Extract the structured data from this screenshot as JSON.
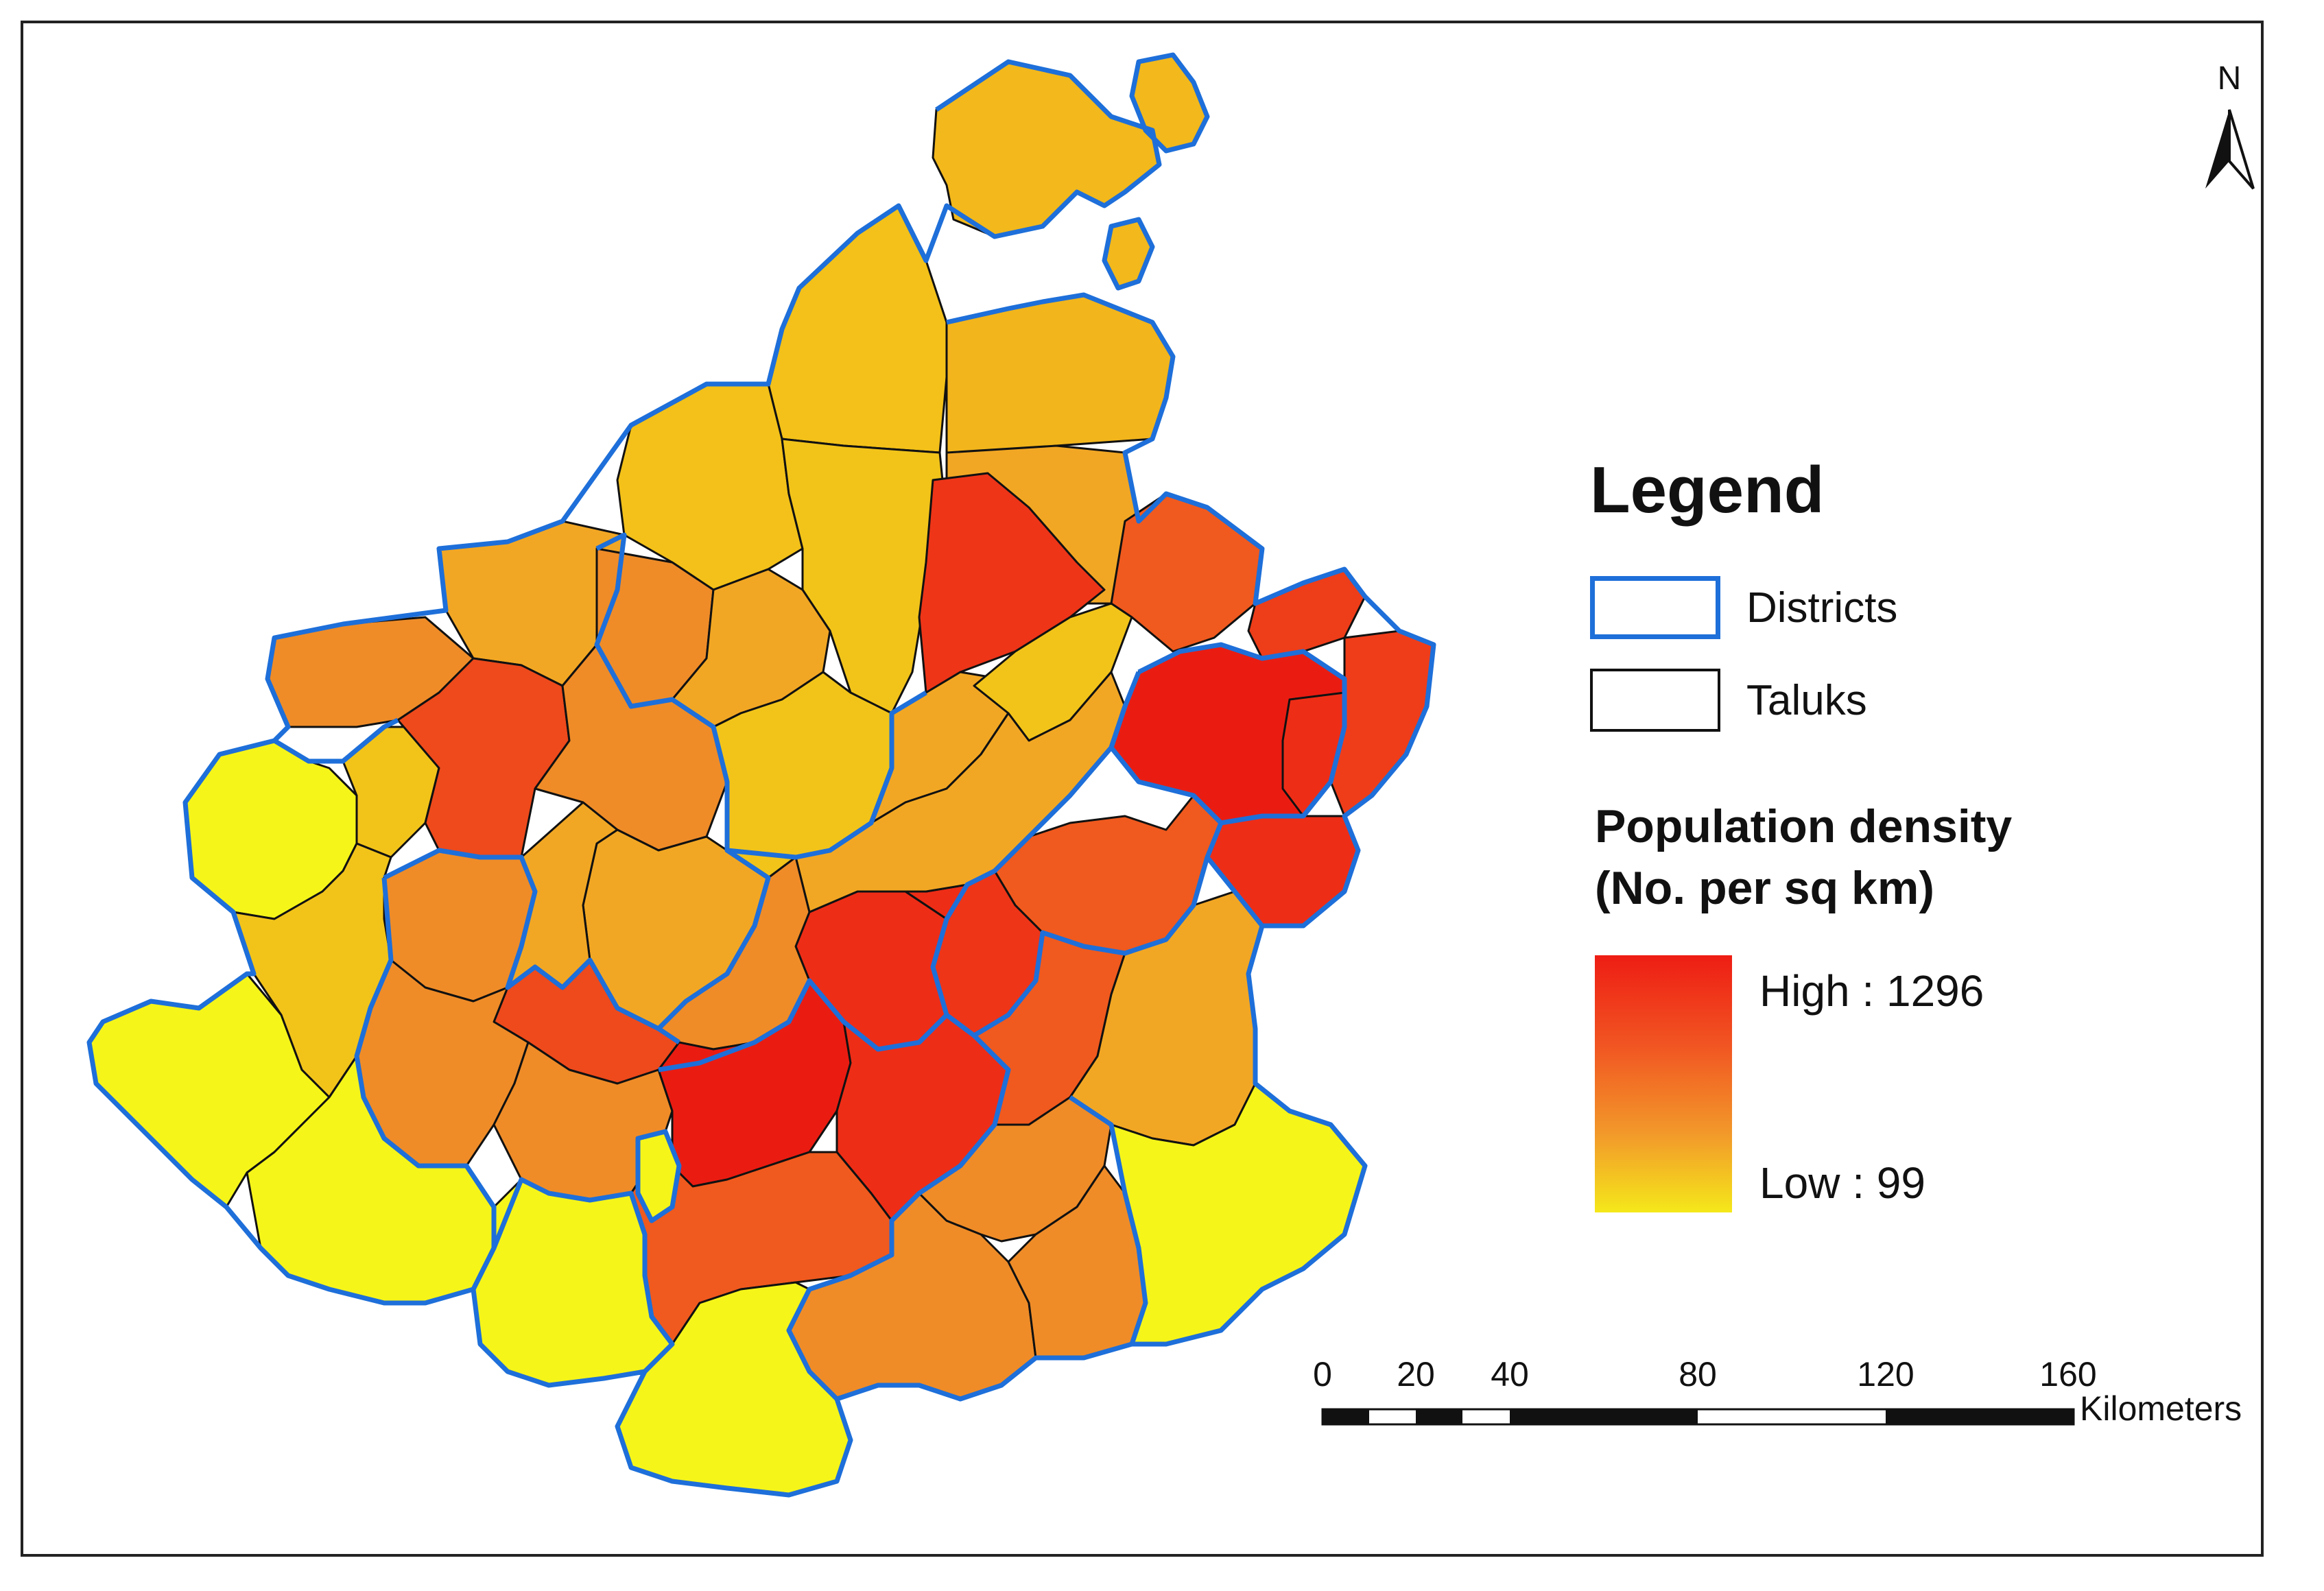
{
  "north_arrow": {
    "label": "N"
  },
  "legend": {
    "title": "Legend",
    "districts_label": "Districts",
    "taluks_label": "Taluks",
    "density_title_line1": "Population density",
    "density_title_line2": "(No. per sq km)",
    "high_label": "High : 1296",
    "low_label": "Low : 99"
  },
  "scale_bar": {
    "ticks": [
      "0",
      "20",
      "40",
      "80",
      "120",
      "160"
    ],
    "units": "Kilometers"
  },
  "colors": {
    "district_border": "#1e6fd9",
    "taluk_border": "#111111",
    "density_high": "#ee1d14",
    "density_mid": "#f29a2a",
    "density_low": "#f5f51a",
    "yellow_orange": "#f4c418"
  }
}
